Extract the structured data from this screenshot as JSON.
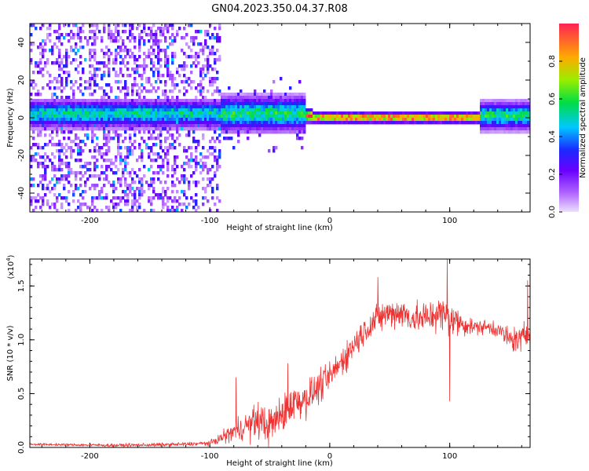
{
  "title": "GN04.2023.350.04.37.R08",
  "chart_data": [
    {
      "type": "heatmap",
      "xlabel": "Height of straight line (km)",
      "ylabel": "Frequency (Hz)",
      "xlim": [
        -250,
        167
      ],
      "ylim": [
        -50,
        50
      ],
      "x_ticks": [
        -200,
        -100,
        0,
        100
      ],
      "y_ticks": [
        -40,
        -20,
        0,
        20,
        40
      ],
      "colorbar": {
        "label": "Normalized spectral amplitude",
        "range": [
          0.0,
          1.0
        ],
        "ticks": [
          "0.0",
          "0.2",
          "0.4",
          "0.6",
          "0.8"
        ],
        "tick_values": [
          0.0,
          0.2,
          0.4,
          0.6,
          0.8
        ],
        "colormap": [
          "#ece0fc",
          "#9933ff",
          "#2222ff",
          "#00c8ff",
          "#00dd44",
          "#99ee00",
          "#ffaa00",
          "#ff2255"
        ]
      },
      "segments": [
        {
          "range": [
            -250,
            -90
          ],
          "description": "broadband scatter across all frequencies, band at 0 Hz",
          "center": 2,
          "band_width": 4,
          "scatter": 0.45,
          "peak": 0.55
        },
        {
          "range": [
            -90,
            -20
          ],
          "description": "sparser scatter within about +-20 Hz",
          "center": 2,
          "band_width": 5,
          "scatter": 0.12,
          "peak": 0.6
        },
        {
          "range": [
            -30,
            -15
          ],
          "description": "strong narrow line",
          "center": 1,
          "band_width": 2,
          "peak": 0.95
        },
        {
          "range": [
            -15,
            125
          ],
          "description": "steady narrow high-amplitude line near 0 Hz",
          "center": 0,
          "band_width": 1.5,
          "peak": 1.0
        },
        {
          "range": [
            125,
            167
          ],
          "description": "widening band",
          "center": 1,
          "band_width": 4,
          "peak": 0.6
        }
      ]
    },
    {
      "type": "line",
      "ylabel": "SNR (10 * v/v)",
      "xlabel": "Height of straight line (km)",
      "y_multiplier": "(x10",
      "y_multiplier_exp": "4",
      "y_multiplier_close": ")",
      "xlim": [
        -250,
        167
      ],
      "ylim": [
        0,
        17500
      ],
      "x_ticks": [
        -200,
        -100,
        0,
        100
      ],
      "y_ticks": [
        0,
        5000,
        10000,
        15000
      ],
      "y_tick_labels": [
        "0.0",
        "0.5",
        "1.0",
        "1.5"
      ],
      "series": [
        {
          "color": "#ee3333",
          "points": [
            [
              -250,
              300
            ],
            [
              -220,
              250
            ],
            [
              -180,
              200
            ],
            [
              -140,
              250
            ],
            [
              -120,
              300
            ],
            [
              -100,
              400
            ],
            [
              -90,
              900
            ],
            [
              -80,
              1500
            ],
            [
              -70,
              2000
            ],
            [
              -60,
              2500
            ],
            [
              -50,
              2000
            ],
            [
              -40,
              3000
            ],
            [
              -30,
              4200
            ],
            [
              -20,
              4500
            ],
            [
              -10,
              5500
            ],
            [
              0,
              6500
            ],
            [
              10,
              8000
            ],
            [
              20,
              9500
            ],
            [
              30,
              11000
            ],
            [
              40,
              12000
            ],
            [
              50,
              12500
            ],
            [
              60,
              12500
            ],
            [
              70,
              12000
            ],
            [
              80,
              12000
            ],
            [
              90,
              12500
            ],
            [
              100,
              12000
            ],
            [
              110,
              11500
            ],
            [
              120,
              11200
            ],
            [
              130,
              11200
            ],
            [
              140,
              11000
            ],
            [
              150,
              10000
            ],
            [
              160,
              10000
            ],
            [
              167,
              11000
            ]
          ],
          "noise_amplitude": [
            [
              -250,
              150
            ],
            [
              -100,
              300
            ],
            [
              -90,
              800
            ],
            [
              -60,
              2500
            ],
            [
              -30,
              2600
            ],
            [
              0,
              2000
            ],
            [
              50,
              2000
            ],
            [
              100,
              2500
            ],
            [
              120,
              900
            ],
            [
              140,
              1200
            ],
            [
              167,
              2200
            ]
          ],
          "notable_spikes": [
            [
              -78,
              6500
            ],
            [
              -35,
              7800
            ],
            [
              40,
              15800
            ],
            [
              98,
              17500
            ],
            [
              100,
              4300
            ],
            [
              165,
              15500
            ]
          ]
        }
      ]
    }
  ]
}
